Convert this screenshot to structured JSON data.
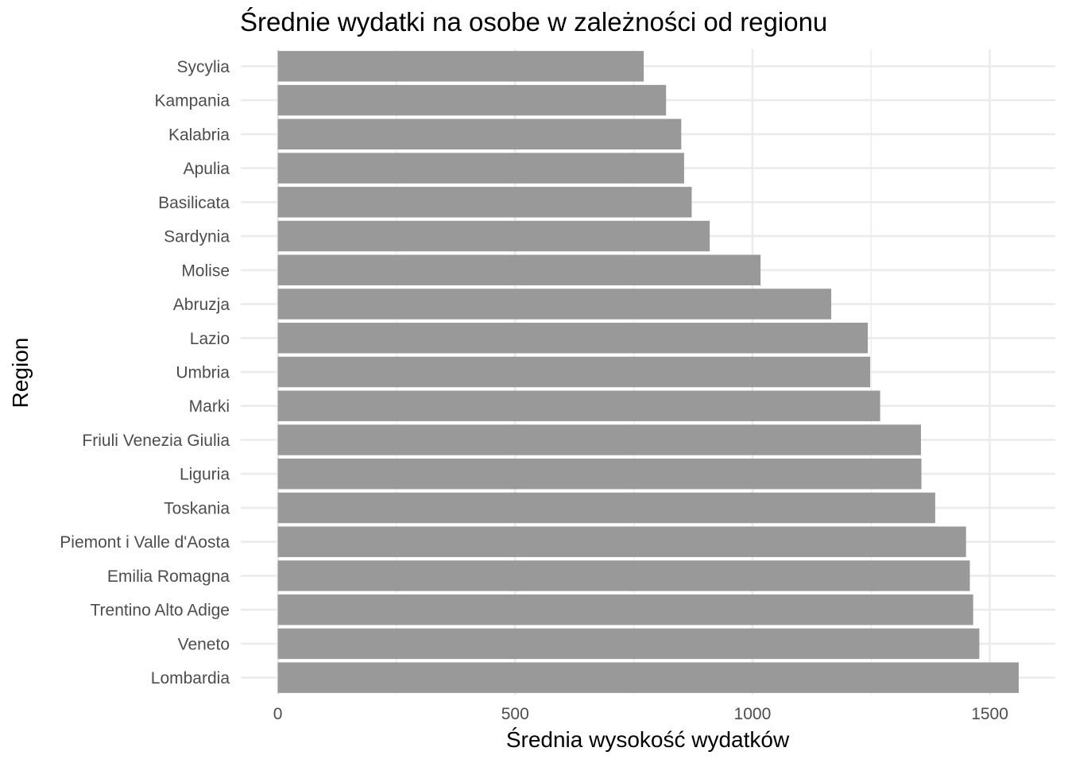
{
  "chart_data": {
    "type": "bar",
    "orientation": "horizontal",
    "title": "Średnie wydatki na osobe w zależności od regionu",
    "xlabel": "Średnia wysokość wydatków",
    "ylabel": "Region",
    "categories": [
      "Sycylia",
      "Kampania",
      "Kalabria",
      "Apulia",
      "Basilicata",
      "Sardynia",
      "Molise",
      "Abruzja",
      "Lazio",
      "Umbria",
      "Marki",
      "Friuli Venezia Giulia",
      "Liguria",
      "Toskania",
      "Piemont i Valle d'Aosta",
      "Emilia Romagna",
      "Trentino Alto Adige",
      "Veneto",
      "Lombardia"
    ],
    "values": [
      771,
      818,
      850,
      856,
      872,
      910,
      1017,
      1166,
      1243,
      1248,
      1269,
      1355,
      1356,
      1385,
      1450,
      1458,
      1465,
      1478,
      1561
    ],
    "xlim": [
      -78,
      1638
    ],
    "x_ticks": [
      0,
      500,
      1000,
      1500
    ],
    "x_tick_labels": [
      "0",
      "500",
      "1000",
      "1500"
    ],
    "grid": true,
    "bar_color": "#999999"
  }
}
